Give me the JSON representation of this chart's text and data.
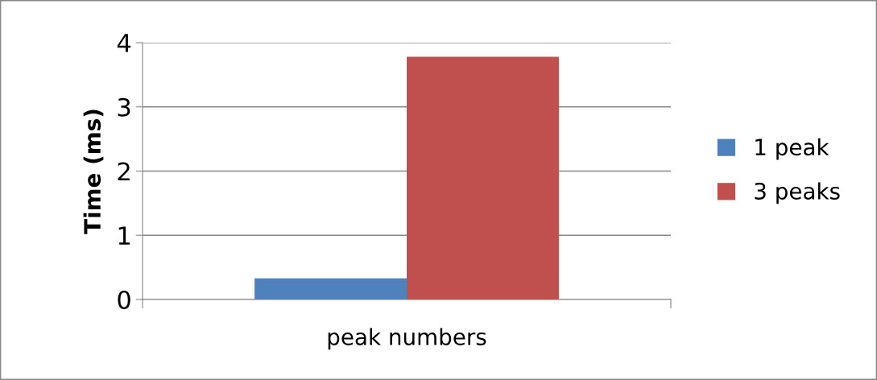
{
  "chart_data": {
    "type": "bar",
    "xlabel": "peak numbers",
    "ylabel": "Time (ms)",
    "categories": [
      null
    ],
    "series": [
      {
        "name": "1 peak",
        "color": "#4f81bd",
        "values": [
          0.33
        ]
      },
      {
        "name": "3 peaks",
        "color": "#c0504d",
        "values": [
          3.78
        ]
      }
    ],
    "ylim": [
      0,
      4
    ],
    "yticks": [
      0,
      1,
      2,
      3,
      4
    ],
    "grid": "y",
    "legend": "right"
  }
}
